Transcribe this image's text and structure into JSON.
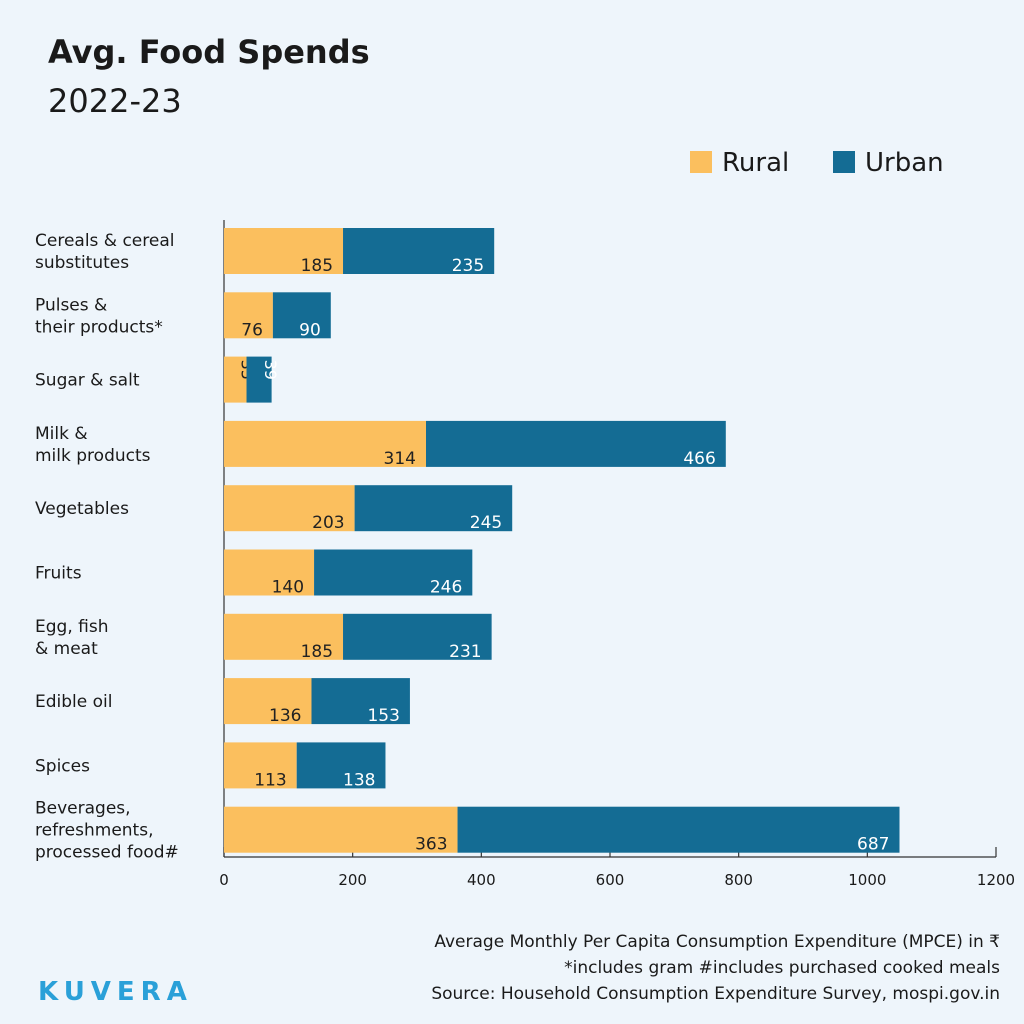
{
  "chart_data": {
    "type": "stacked-bar-horizontal",
    "title": "Avg. Food Spends",
    "subtitle": "2022-23",
    "categories": [
      [
        "Cereals & cereal",
        "substitutes"
      ],
      [
        "Pulses &",
        "their products*"
      ],
      [
        "Sugar & salt"
      ],
      [
        "Milk &",
        "milk products"
      ],
      [
        "Vegetables"
      ],
      [
        "Fruits"
      ],
      [
        "Egg, fish",
        "& meat"
      ],
      [
        "Edible oil"
      ],
      [
        "Spices"
      ],
      [
        "Beverages,",
        "refreshments,",
        "processed food#"
      ]
    ],
    "series": [
      {
        "name": "Rural",
        "color": "#fbbf5e",
        "values": [
          185,
          76,
          35,
          314,
          203,
          140,
          185,
          136,
          113,
          363
        ]
      },
      {
        "name": "Urban",
        "color": "#146c94",
        "values": [
          235,
          90,
          39,
          466,
          245,
          246,
          231,
          153,
          138,
          687
        ]
      }
    ],
    "xlim": [
      0,
      1200
    ],
    "xticks": [
      0,
      200,
      400,
      600,
      800,
      1000,
      1200
    ],
    "notes": [
      "Average Monthly Per Capita Consumption Expenditure (MPCE) in ₹",
      "*includes gram #includes purchased cooked meals",
      "Source: Household Consumption Expenditure Survey, mospi.gov.in"
    ],
    "brand": "KUVERA"
  }
}
